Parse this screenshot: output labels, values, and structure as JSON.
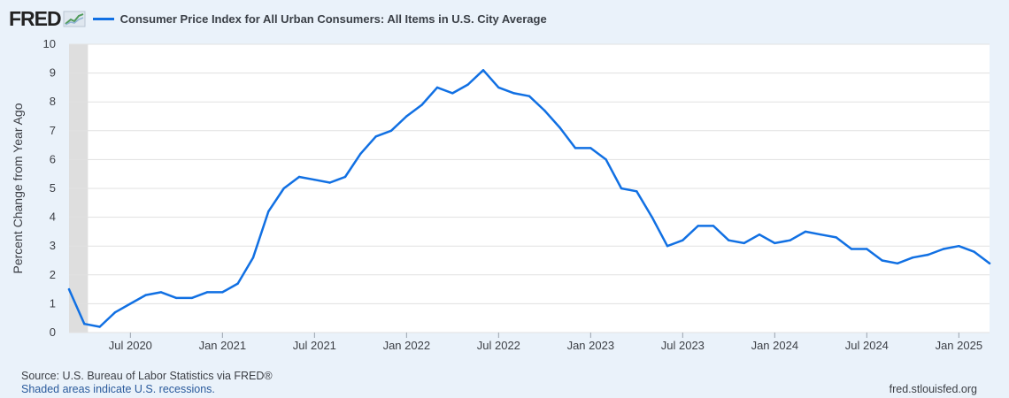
{
  "brand": {
    "logo_text": "FRED"
  },
  "legend": {
    "label": "Consumer Price Index for All Urban Consumers: All Items in U.S. City Average",
    "color": "#1170e3"
  },
  "footer": {
    "source": "Source: U.S. Bureau of Labor Statistics via FRED®",
    "note": "Shaded areas indicate U.S. recessions.",
    "site": "fred.stlouisfed.org"
  },
  "chart_data": {
    "type": "line",
    "ylabel": "Percent Change from Year Ago",
    "xlabel": "",
    "ylim": [
      0,
      10
    ],
    "yticks": [
      0,
      1,
      2,
      3,
      4,
      5,
      6,
      7,
      8,
      9,
      10
    ],
    "grid": true,
    "x_start": "2020-03",
    "x_end": "2025-03",
    "recession": {
      "start": "2020-02",
      "end": "2020-04"
    },
    "xticks": [
      {
        "label": "Jul 2020",
        "month": "2020-07"
      },
      {
        "label": "Jan 2021",
        "month": "2021-01"
      },
      {
        "label": "Jul 2021",
        "month": "2021-07"
      },
      {
        "label": "Jan 2022",
        "month": "2022-01"
      },
      {
        "label": "Jul 2022",
        "month": "2022-07"
      },
      {
        "label": "Jan 2023",
        "month": "2023-01"
      },
      {
        "label": "Jul 2023",
        "month": "2023-07"
      },
      {
        "label": "Jan 2024",
        "month": "2024-01"
      },
      {
        "label": "Jul 2024",
        "month": "2024-07"
      },
      {
        "label": "Jan 2025",
        "month": "2025-01"
      }
    ],
    "series": [
      {
        "name": "Consumer Price Index for All Urban Consumers: All Items in U.S. City Average",
        "color": "#1170e3",
        "start": "2020-03",
        "values": [
          1.5,
          0.3,
          0.2,
          0.7,
          1.0,
          1.3,
          1.4,
          1.2,
          1.2,
          1.4,
          1.4,
          1.7,
          2.6,
          4.2,
          5.0,
          5.4,
          5.3,
          5.2,
          5.4,
          6.2,
          6.8,
          7.0,
          7.5,
          7.9,
          8.5,
          8.3,
          8.6,
          9.1,
          8.5,
          8.3,
          8.2,
          7.7,
          7.1,
          6.4,
          6.4,
          6.0,
          5.0,
          4.9,
          4.0,
          3.0,
          3.2,
          3.7,
          3.7,
          3.2,
          3.1,
          3.4,
          3.1,
          3.2,
          3.5,
          3.4,
          3.3,
          2.9,
          2.9,
          2.5,
          2.4,
          2.6,
          2.7,
          2.9,
          3.0,
          2.8,
          2.4
        ]
      }
    ]
  }
}
